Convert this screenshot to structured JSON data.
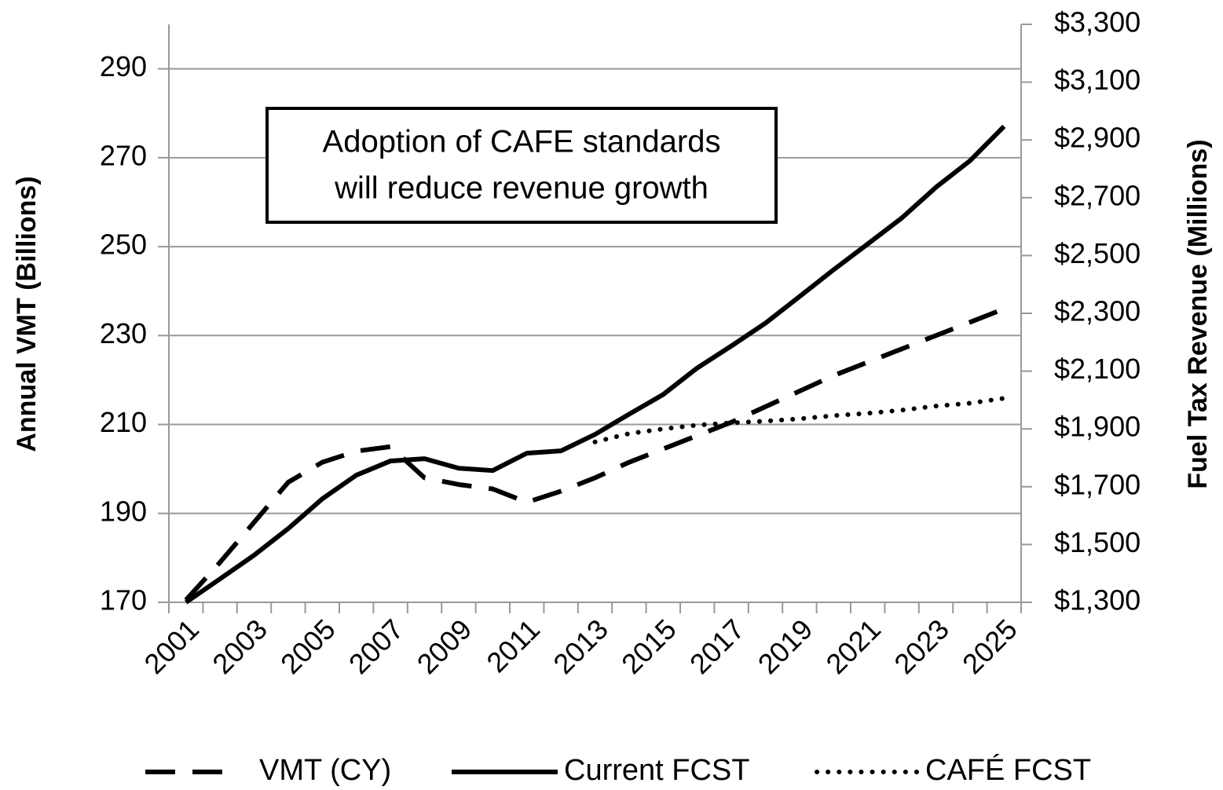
{
  "chart_data": {
    "type": "line",
    "annotation": [
      "Adoption of CAFE standards",
      "will reduce revenue growth"
    ],
    "y_label": "Annual VMT (Billions)",
    "y2_label": "Fuel Tax Revenue (Millions)",
    "categories": [
      "2001",
      null,
      "2003",
      null,
      "2005",
      null,
      "2007",
      null,
      "2009",
      null,
      "2011",
      null,
      "2013",
      null,
      "2015",
      null,
      "2017",
      null,
      "2019",
      null,
      "2021",
      null,
      "2023",
      null,
      "2025"
    ],
    "series": [
      {
        "name": "VMT (CY)",
        "color": "#000000",
        "style": "dashed",
        "axis": "y",
        "values": [
          170.5,
          179,
          188,
          197,
          201.5,
          204,
          205,
          198,
          196.5,
          195.5,
          192.5,
          195,
          198,
          201.5,
          204.5,
          207.5,
          210.5,
          214,
          217.5,
          221,
          224,
          227,
          230,
          233,
          236
        ]
      },
      {
        "name": "Current FCST",
        "color": "#000000",
        "style": "solid",
        "axis": "y2",
        "values": [
          1300,
          1381,
          1463,
          1555,
          1658,
          1740,
          1789,
          1797,
          1764,
          1756,
          1816,
          1824,
          1881,
          1951,
          2019,
          2111,
          2187,
          2266,
          2358,
          2451,
          2540,
          2630,
          2736,
          2828,
          2947
        ]
      },
      {
        "name": "CAFÉ FCST",
        "color": "#000000",
        "style": "dotted",
        "axis": "y2",
        "values": [
          null,
          null,
          null,
          null,
          null,
          null,
          null,
          null,
          null,
          null,
          null,
          null,
          1855,
          1884,
          1900,
          1913,
          1921,
          1927,
          1935,
          1946,
          1954,
          1965,
          1979,
          1989,
          2006
        ]
      }
    ],
    "ylim": [
      170,
      300
    ],
    "yticks": [
      170,
      190,
      210,
      230,
      250,
      270,
      290
    ],
    "y2lim": [
      1300,
      3300
    ],
    "y2ticks": [
      {
        "value": 1300,
        "label": "$1,300"
      },
      {
        "value": 1500,
        "label": "$1,500"
      },
      {
        "value": 1700,
        "label": "$1,700"
      },
      {
        "value": 1900,
        "label": "$1,900"
      },
      {
        "value": 2100,
        "label": "$2,100"
      },
      {
        "value": 2300,
        "label": "$2,300"
      },
      {
        "value": 2500,
        "label": "$2,500"
      },
      {
        "value": 2700,
        "label": "$2,700"
      },
      {
        "value": 2900,
        "label": "$2,900"
      },
      {
        "value": 3100,
        "label": "$3,100"
      },
      {
        "value": 3300,
        "label": "$3,300"
      }
    ],
    "grid": true,
    "legend": "bottom"
  }
}
